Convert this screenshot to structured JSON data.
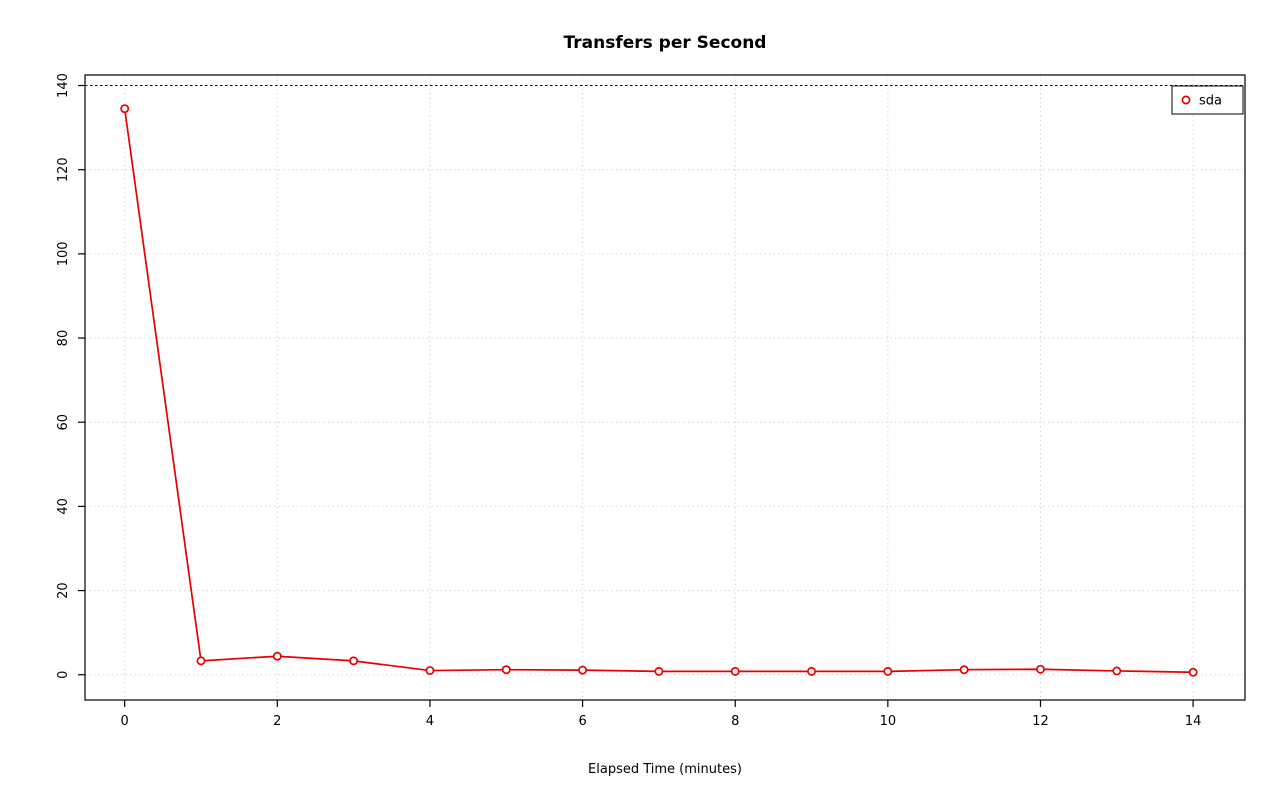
{
  "chart_data": {
    "type": "line",
    "title": "Transfers per Second",
    "xlabel": "Elapsed Time (minutes)",
    "ylabel": "",
    "x": [
      0,
      1,
      2,
      3,
      4,
      5,
      6,
      7,
      8,
      9,
      10,
      11,
      12,
      13,
      14
    ],
    "series": [
      {
        "name": "sda",
        "color": "#e60000",
        "marker": "open-circle",
        "values": [
          134.5,
          3.3,
          4.4,
          3.3,
          1.0,
          1.2,
          1.1,
          0.8,
          0.8,
          0.8,
          0.8,
          1.2,
          1.3,
          0.9,
          0.6
        ]
      }
    ],
    "xticks": [
      0,
      2,
      4,
      6,
      8,
      10,
      12,
      14
    ],
    "yticks": [
      0,
      20,
      40,
      60,
      80,
      100,
      120,
      140
    ],
    "xlim": [
      0,
      14
    ],
    "ylim": [
      0,
      140
    ],
    "grid": true,
    "grid_color": "#d6d6d6",
    "axis_color": "#000000",
    "top_reference_line": {
      "y": 140,
      "color": "#000000",
      "style": "dashed"
    },
    "legend": {
      "position": "top-right",
      "entries": [
        "sda"
      ]
    }
  }
}
